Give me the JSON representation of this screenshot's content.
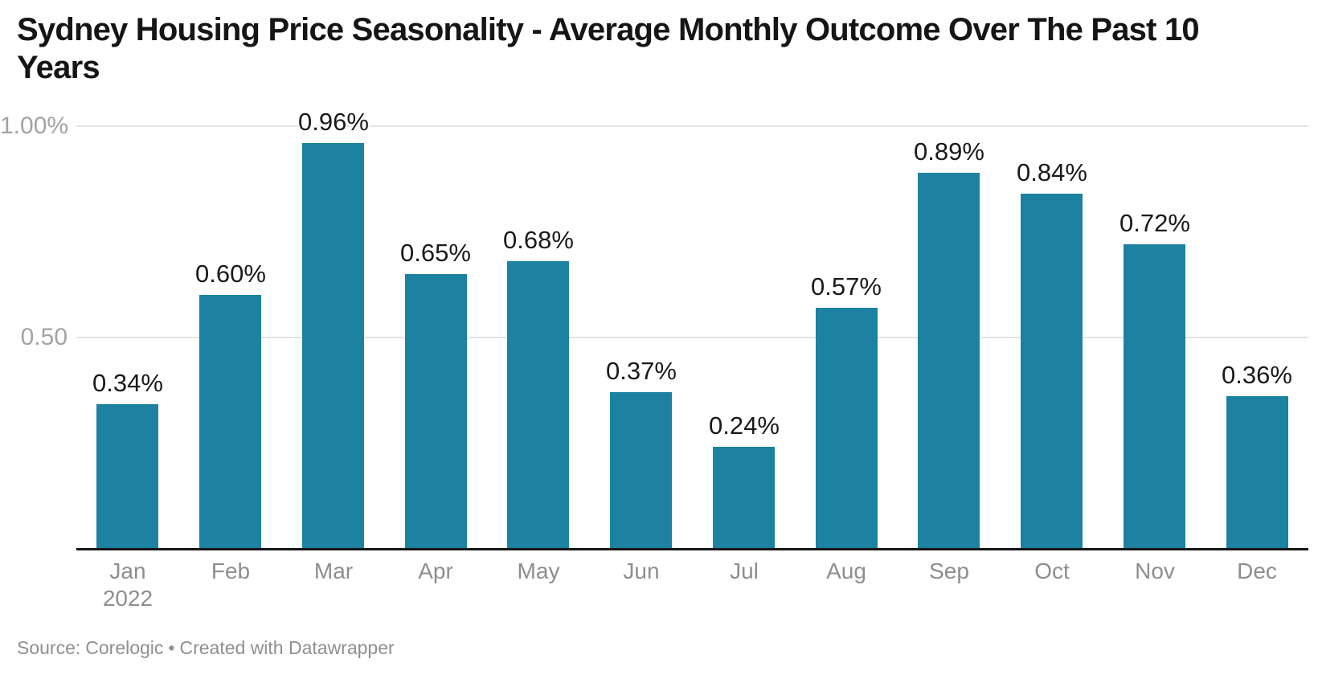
{
  "header": {
    "title": "Sydney Housing Price Seasonality - Average Monthly Outcome Over The Past 10 Years",
    "title_lines": [
      "Sydney Housing Price Seasonality - Average Monthly Outcome Over The Past 10",
      "Years"
    ]
  },
  "y_axis": {
    "ticks": [
      {
        "label": "1.00%",
        "value": 1.0
      },
      {
        "label": "0.50",
        "value": 0.5
      }
    ]
  },
  "x_axis": {
    "first_sublabel": "2022"
  },
  "footer": {
    "source_label": "Source:",
    "source_name": "Corelogic",
    "separator": "•",
    "credit": "Created with Datawrapper"
  },
  "colors": {
    "bar": "#1d81a2",
    "axis_line": "#161616",
    "gridline": "#e4e4e4",
    "y_tick_label": "#a3a3a3",
    "month_label": "#8e8e8e",
    "value_label": "#1a1a1a",
    "title": "#151515",
    "footer_text": "#8f8f8f"
  },
  "chart_data": {
    "type": "bar",
    "title": "Sydney Housing Price Seasonality - Average Monthly Outcome Over The Past 10 Years",
    "categories": [
      "Jan",
      "Feb",
      "Mar",
      "Apr",
      "May",
      "Jun",
      "Jul",
      "Aug",
      "Sep",
      "Oct",
      "Nov",
      "Dec"
    ],
    "x_first_category_year": "2022",
    "values": [
      0.34,
      0.6,
      0.96,
      0.65,
      0.68,
      0.37,
      0.24,
      0.57,
      0.89,
      0.84,
      0.72,
      0.36
    ],
    "value_labels": [
      "0.34%",
      "0.60%",
      "0.96%",
      "0.65%",
      "0.68%",
      "0.37%",
      "0.24%",
      "0.57%",
      "0.89%",
      "0.84%",
      "0.72%",
      "0.36%"
    ],
    "unit": "%",
    "xlabel": "",
    "ylabel": "",
    "ylim": [
      0,
      1.0
    ],
    "grid": "horizontal",
    "legend": "none",
    "source": "Corelogic",
    "credit": "Created with Datawrapper"
  }
}
